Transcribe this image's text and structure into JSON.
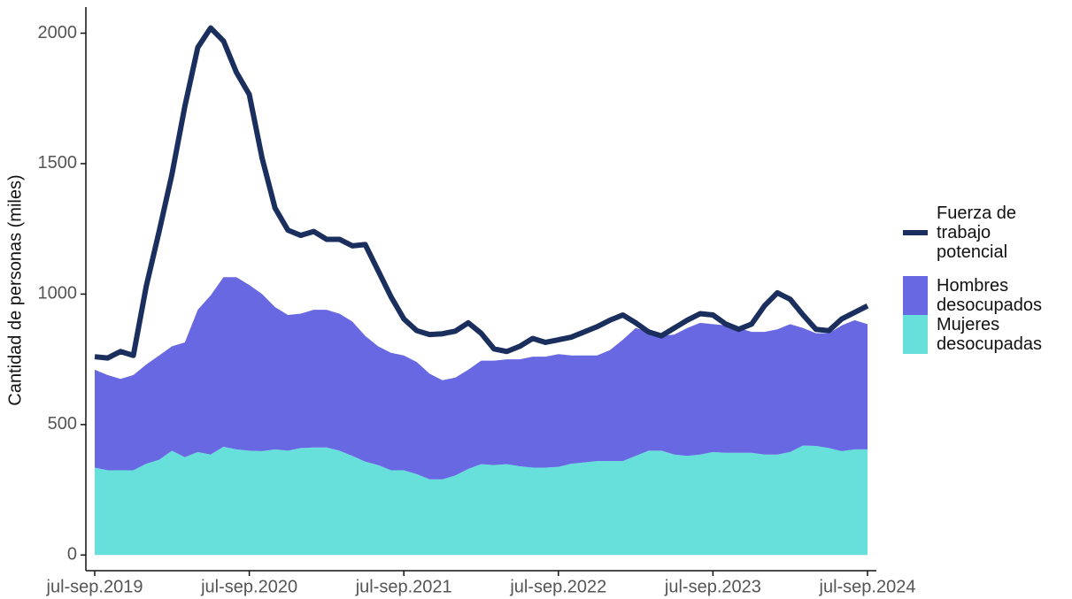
{
  "chart_data": {
    "type": "stacked-area-line",
    "y_label": "Cantidad de personas (miles)",
    "categories": [
      "jul-sep.2019",
      null,
      null,
      null,
      null,
      null,
      null,
      null,
      null,
      null,
      null,
      null,
      "jul-sep.2020",
      null,
      null,
      null,
      null,
      null,
      null,
      null,
      null,
      null,
      null,
      null,
      "jul-sep.2021",
      null,
      null,
      null,
      null,
      null,
      null,
      null,
      null,
      null,
      null,
      null,
      "jul-sep.2022",
      null,
      null,
      null,
      null,
      null,
      null,
      null,
      null,
      null,
      null,
      null,
      "jul-sep.2023",
      null,
      null,
      null,
      null,
      null,
      null,
      null,
      null,
      null,
      null,
      null,
      "jul-sep.2024"
    ],
    "series": [
      {
        "name": "Mujeres desocupadas",
        "color": "#67e0dc",
        "kind": "area",
        "values": [
          335,
          325,
          325,
          325,
          350,
          365,
          400,
          375,
          395,
          385,
          415,
          405,
          400,
          398,
          405,
          400,
          410,
          412,
          412,
          400,
          380,
          358,
          345,
          325,
          325,
          310,
          290,
          290,
          305,
          330,
          348,
          345,
          348,
          340,
          335,
          335,
          338,
          350,
          355,
          360,
          360,
          360,
          380,
          400,
          400,
          385,
          380,
          385,
          395,
          392,
          392,
          392,
          385,
          385,
          395,
          420,
          418,
          410,
          398,
          405,
          405
        ]
      },
      {
        "name": "Hombres desocupados",
        "color": "#6868e2",
        "kind": "area",
        "values": [
          375,
          365,
          350,
          365,
          380,
          400,
          400,
          440,
          545,
          610,
          650,
          660,
          635,
          602,
          545,
          520,
          515,
          528,
          528,
          525,
          515,
          482,
          455,
          450,
          440,
          430,
          405,
          380,
          375,
          380,
          397,
          400,
          402,
          410,
          425,
          425,
          432,
          415,
          410,
          405,
          425,
          465,
          490,
          455,
          440,
          460,
          490,
          505,
          490,
          488,
          478,
          463,
          470,
          480,
          490,
          450,
          432,
          440,
          482,
          495,
          480
        ]
      },
      {
        "name": "Fuerza de trabajo potencial",
        "color": "#1b2f5e",
        "kind": "line",
        "values": [
          760,
          755,
          780,
          765,
          1030,
          1240,
          1460,
          1720,
          1945,
          2020,
          1970,
          1850,
          1765,
          1520,
          1330,
          1245,
          1225,
          1240,
          1210,
          1210,
          1185,
          1190,
          1090,
          990,
          905,
          860,
          845,
          848,
          858,
          890,
          850,
          790,
          780,
          800,
          830,
          815,
          825,
          835,
          855,
          875,
          900,
          920,
          890,
          855,
          840,
          870,
          900,
          925,
          920,
          885,
          865,
          885,
          955,
          1005,
          980,
          920,
          865,
          860,
          905,
          930,
          955
        ]
      }
    ],
    "ylim": [
      -60,
      2100
    ],
    "yticks": [
      0,
      500,
      1000,
      1500,
      2000
    ],
    "grid": false
  }
}
